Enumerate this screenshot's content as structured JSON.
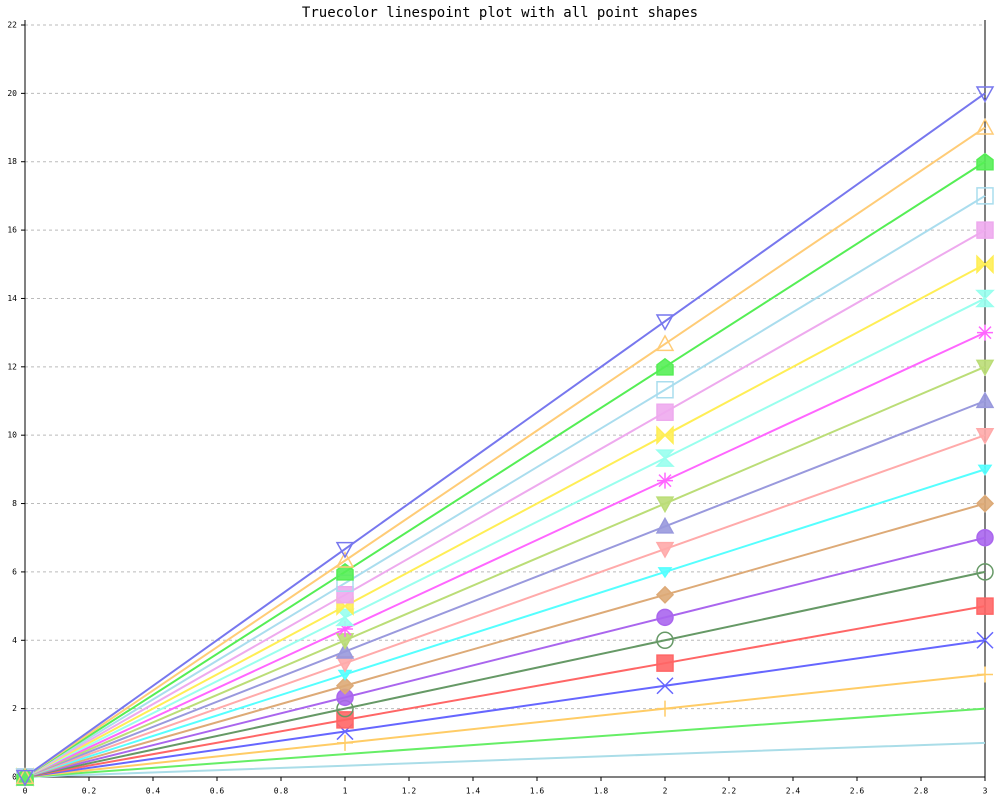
{
  "chart_data": {
    "type": "linespoints",
    "title": "Truecolor linespoint plot with all point shapes",
    "x": [
      0,
      1,
      2,
      3
    ],
    "xlim": [
      0,
      3
    ],
    "xticks": [
      0,
      0.2,
      0.4,
      0.6,
      0.8,
      1,
      1.2,
      1.4,
      1.6,
      1.8,
      2,
      2.2,
      2.4,
      2.6,
      2.8,
      3
    ],
    "ylim": [
      0,
      22
    ],
    "yticks": [
      0,
      2,
      4,
      6,
      8,
      10,
      12,
      14,
      16,
      18,
      20,
      22
    ],
    "grid": true,
    "series": [
      {
        "color": "#aadde8",
        "marker": "none",
        "values": [
          0,
          0.33,
          0.67,
          1
        ]
      },
      {
        "color": "#66ee66",
        "marker": "none",
        "values": [
          0,
          0.67,
          1.33,
          2
        ]
      },
      {
        "color": "#ffcc66",
        "marker": "plus",
        "values": [
          0,
          1,
          2,
          3
        ]
      },
      {
        "color": "#6666ff",
        "marker": "cross",
        "values": [
          0,
          1.33,
          2.67,
          4
        ]
      },
      {
        "color": "#ff6666",
        "marker": "square-filled",
        "values": [
          0,
          1.67,
          3.33,
          5
        ]
      },
      {
        "color": "#669966",
        "marker": "circle-open",
        "values": [
          0,
          2,
          4,
          6
        ]
      },
      {
        "color": "#aa66ee",
        "marker": "circle-filled",
        "values": [
          0,
          2.33,
          4.67,
          7
        ]
      },
      {
        "color": "#ddaa77",
        "marker": "diamond-filled",
        "values": [
          0,
          2.67,
          5.33,
          8
        ]
      },
      {
        "color": "#55ffff",
        "marker": "small-down-filled",
        "values": [
          0,
          3,
          6,
          9
        ]
      },
      {
        "color": "#ffaaaa",
        "marker": "down-filled",
        "values": [
          0,
          3.33,
          6.67,
          10
        ]
      },
      {
        "color": "#9999dd",
        "marker": "up-filled",
        "values": [
          0,
          3.67,
          7.33,
          11
        ]
      },
      {
        "color": "#bbdd77",
        "marker": "down-filled",
        "values": [
          0,
          4,
          8,
          12
        ]
      },
      {
        "color": "#ff66ff",
        "marker": "asterisk",
        "values": [
          0,
          4.33,
          8.67,
          13
        ]
      },
      {
        "color": "#99ffee",
        "marker": "hourglass",
        "values": [
          0,
          4.67,
          9.33,
          14
        ]
      },
      {
        "color": "#ffee55",
        "marker": "bowtie",
        "values": [
          0,
          5,
          10,
          15
        ]
      },
      {
        "color": "#eeaaee",
        "marker": "square-filled",
        "values": [
          0,
          5.33,
          10.67,
          16
        ]
      },
      {
        "color": "#aaddee",
        "marker": "square-open",
        "values": [
          0,
          5.67,
          11.33,
          17
        ]
      },
      {
        "color": "#55ee55",
        "marker": "pentagon-filled",
        "values": [
          0,
          6,
          12,
          18
        ]
      },
      {
        "color": "#ffcc77",
        "marker": "up-open",
        "values": [
          0,
          6.33,
          12.67,
          19
        ]
      },
      {
        "color": "#7777ee",
        "marker": "down-open",
        "values": [
          0,
          6.67,
          13.33,
          20
        ]
      }
    ]
  }
}
